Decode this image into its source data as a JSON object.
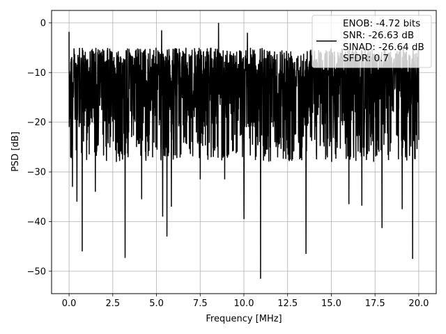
{
  "chart_data": {
    "type": "line",
    "xlabel": "Frequency [MHz]",
    "ylabel": "PSD [dB]",
    "xlim": [
      -1.0,
      21.0
    ],
    "ylim": [
      -54.5,
      2.5
    ],
    "xticks": [
      0.0,
      2.5,
      5.0,
      7.5,
      10.0,
      12.5,
      15.0,
      17.5,
      20.0
    ],
    "xtick_labels": [
      "0.0",
      "2.5",
      "5.0",
      "7.5",
      "10.0",
      "12.5",
      "15.0",
      "17.5",
      "20.0"
    ],
    "yticks": [
      0,
      -10,
      -20,
      -30,
      -40,
      -50
    ],
    "ytick_labels": [
      "0",
      "−10",
      "−20",
      "−30",
      "−40",
      "−50"
    ],
    "grid": true,
    "legend": {
      "placement": "top-right",
      "entries": [
        "ENOB: -4.72 bits",
        "SNR: -26.63 dB",
        "SINAD: -26.64 dB",
        "SFDR: 0.7"
      ]
    },
    "series": [
      {
        "color": "#000000",
        "sample_count": 2048,
        "x_range": [
          0.0,
          20.0
        ],
        "envelope_max": -5,
        "typical_min": -26,
        "dips": [
          {
            "x": 0.2,
            "y": -33
          },
          {
            "x": 0.45,
            "y": -36
          },
          {
            "x": 0.75,
            "y": -46
          },
          {
            "x": 1.5,
            "y": -34
          },
          {
            "x": 3.2,
            "y": -47.3
          },
          {
            "x": 4.15,
            "y": -35.5
          },
          {
            "x": 5.35,
            "y": -39
          },
          {
            "x": 5.6,
            "y": -43
          },
          {
            "x": 5.85,
            "y": -37
          },
          {
            "x": 7.5,
            "y": -31.5
          },
          {
            "x": 8.9,
            "y": -31.5
          },
          {
            "x": 10.0,
            "y": -39.5
          },
          {
            "x": 10.95,
            "y": -51.5
          },
          {
            "x": 13.55,
            "y": -46.5
          },
          {
            "x": 16.0,
            "y": -36.5
          },
          {
            "x": 16.75,
            "y": -36.8
          },
          {
            "x": 17.9,
            "y": -41.3
          },
          {
            "x": 19.05,
            "y": -37.5
          },
          {
            "x": 19.65,
            "y": -47.5
          }
        ],
        "peaks": [
          {
            "x": 0.0,
            "y": -1.8
          },
          {
            "x": 8.55,
            "y": 0.0
          },
          {
            "x": 5.3,
            "y": -1.5
          },
          {
            "x": 10.2,
            "y": -2.0
          }
        ]
      }
    ]
  }
}
